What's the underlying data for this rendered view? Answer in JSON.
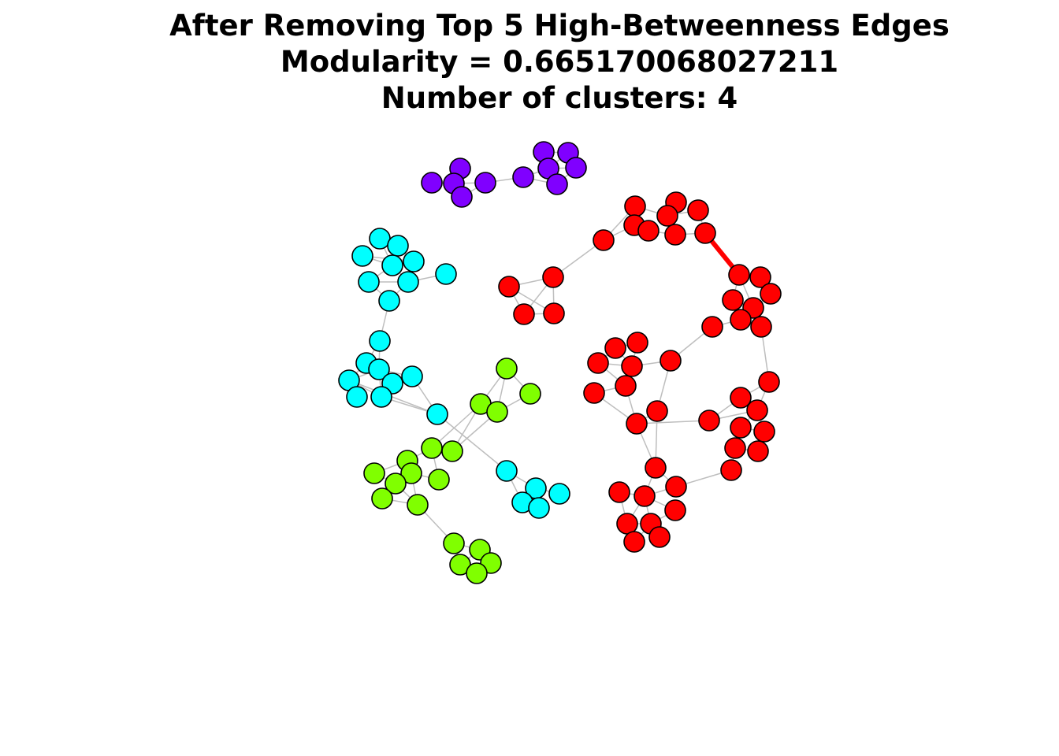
{
  "title": {
    "line1": "After Removing Top 5 High-Betweenness Edges",
    "line2": "Modularity = 0.665170068027211",
    "line3": "Number of clusters: 4"
  },
  "colors": {
    "purple": "#8000FF",
    "red": "#FF0000",
    "cyan": "#00FFFF",
    "green": "#80FF00",
    "edge": "#BEBEBE",
    "highlight_edge": "#FF0000",
    "node_stroke": "#000000"
  },
  "graph": {
    "clusters": [
      {
        "id": "purple",
        "color": "#8000FF"
      },
      {
        "id": "red",
        "color": "#FF0000"
      },
      {
        "id": "cyan",
        "color": "#00FFFF"
      },
      {
        "id": "green",
        "color": "#80FF00"
      }
    ],
    "highlighted_edge_color": "#FF0000"
  }
}
